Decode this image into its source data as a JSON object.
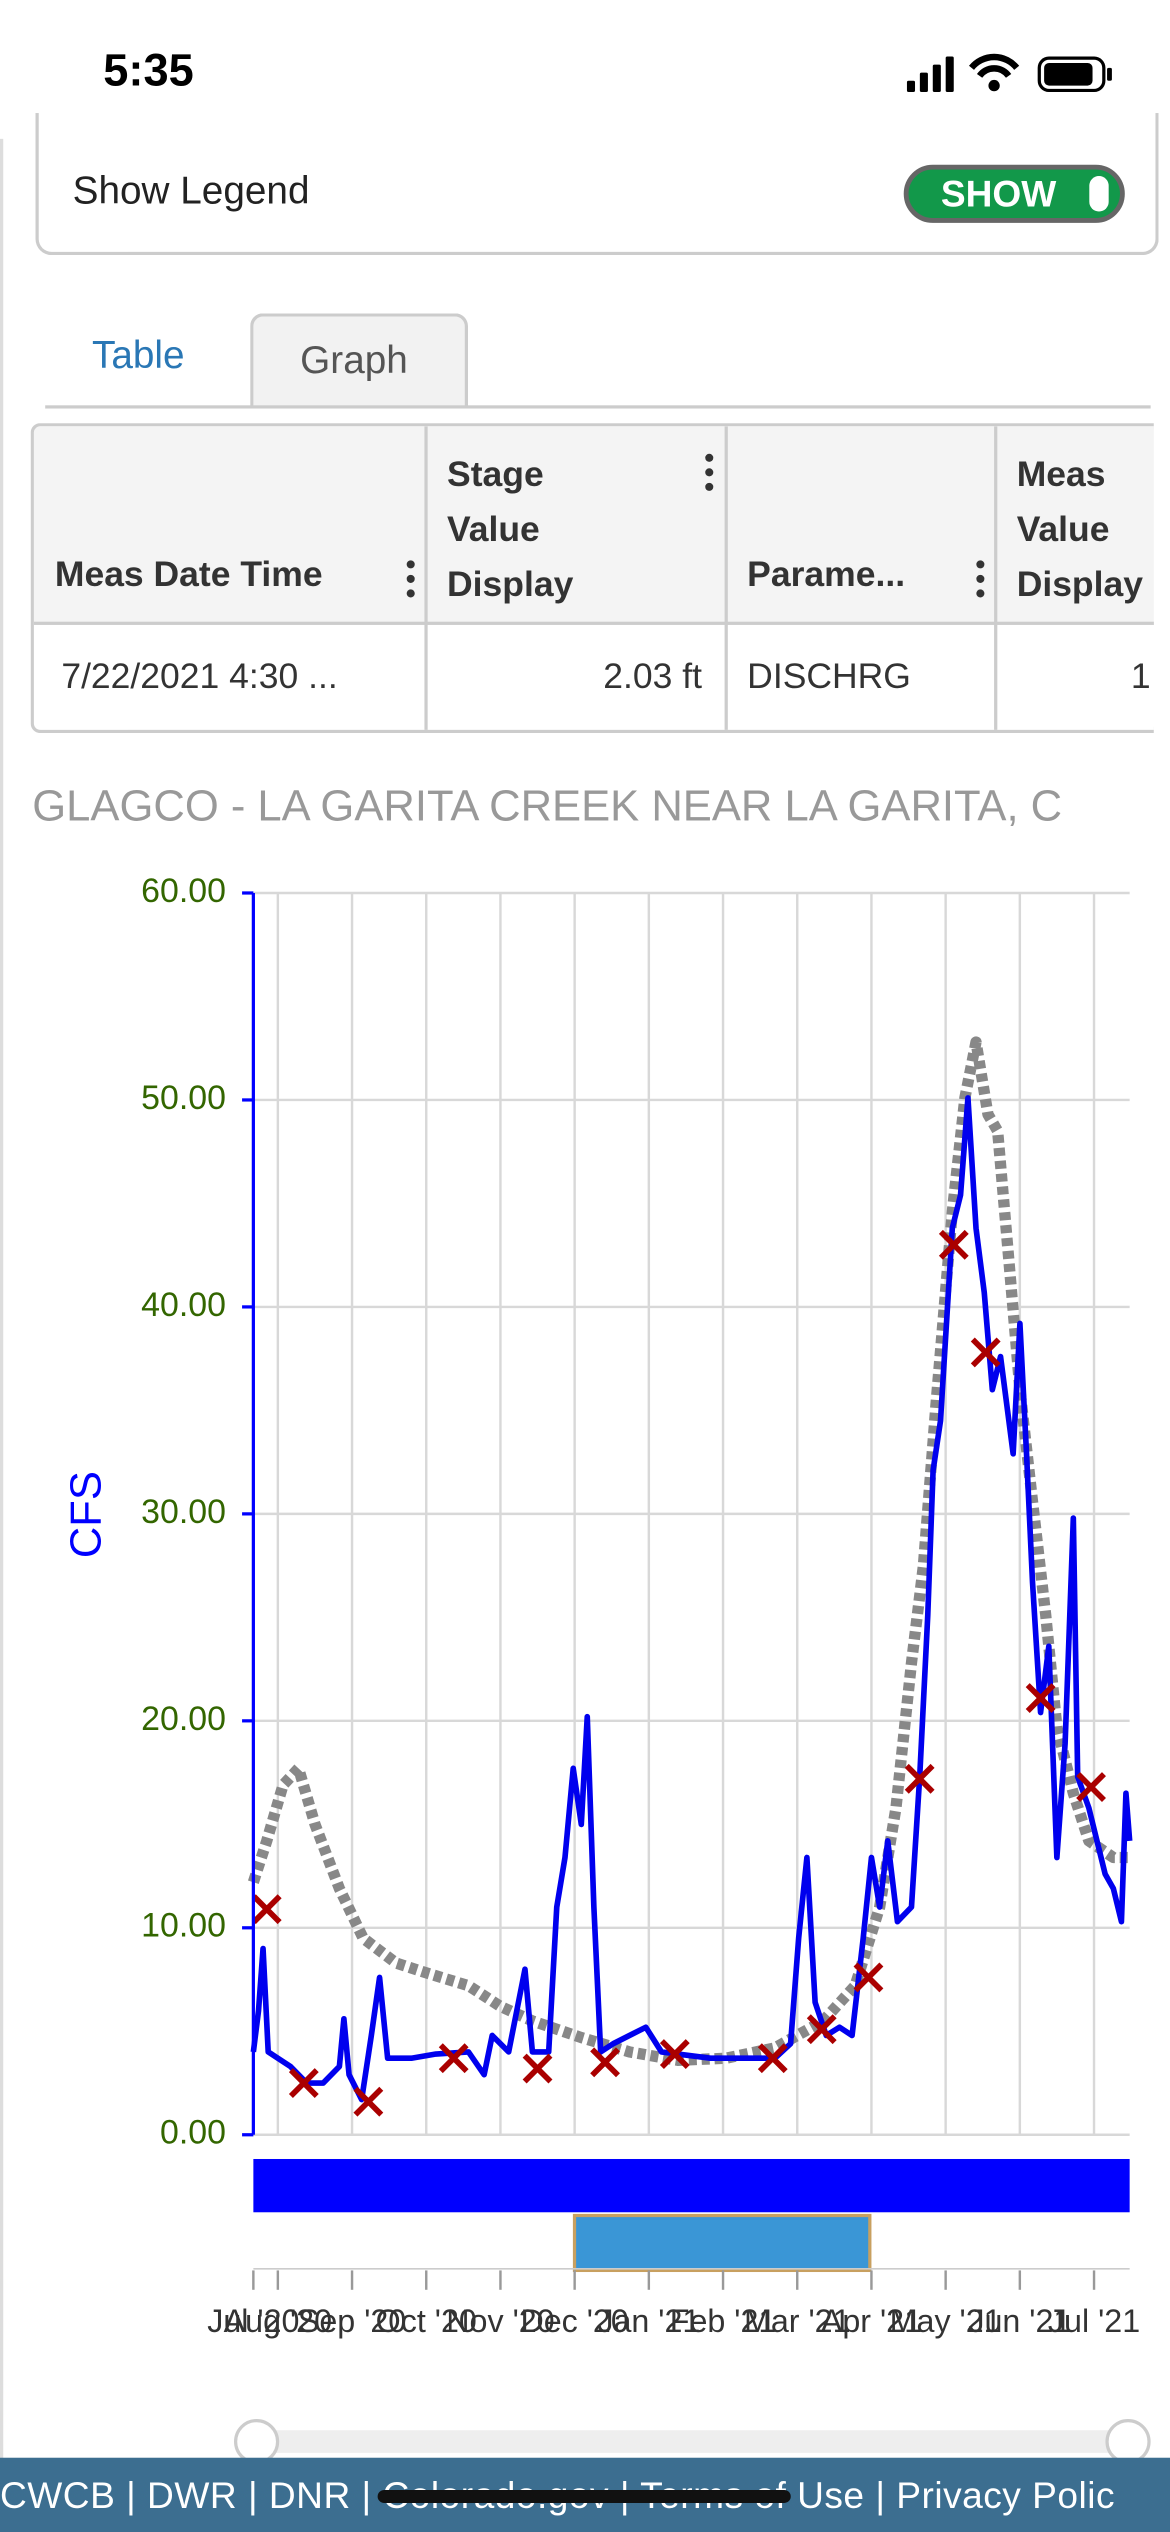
{
  "status_bar": {
    "time": "5:35"
  },
  "legend_toggle": {
    "label": "Show Legend",
    "state": "SHOW"
  },
  "tabs": [
    "Table",
    "Graph"
  ],
  "table": {
    "columns": [
      "Meas Date Time",
      "Stage Value Display",
      "Parame...",
      "Meas Value Display"
    ],
    "rows": [
      [
        "7/22/2021 4:30 ...",
        "2.03 ft",
        "DISCHRG",
        "1"
      ]
    ]
  },
  "chart_data": {
    "type": "line",
    "title": "GLAGCO - LA GARITA CREEK NEAR LA GARITA, C",
    "y_label": "CFS",
    "xlim": [
      0.67,
      12.48
    ],
    "xticks": [
      {
        "value": 0.67,
        "label": "Jul '20"
      },
      {
        "value": 1,
        "label": "Aug '20"
      },
      {
        "value": 2,
        "label": "Sep '20"
      },
      {
        "value": 3,
        "label": "Oct '20"
      },
      {
        "value": 4,
        "label": "Nov '20"
      },
      {
        "value": 5,
        "label": "Dec '20"
      },
      {
        "value": 6,
        "label": "Jan '21"
      },
      {
        "value": 7,
        "label": "Feb '21"
      },
      {
        "value": 8,
        "label": "Mar '21"
      },
      {
        "value": 9,
        "label": "Apr '21"
      },
      {
        "value": 10,
        "label": "May '21"
      },
      {
        "value": 11,
        "label": "Jun '21"
      },
      {
        "value": 12,
        "label": "Jul '21"
      }
    ],
    "ylim": [
      0,
      60
    ],
    "yticks": [
      {
        "value": 0,
        "label": "0.00"
      },
      {
        "value": 10,
        "label": "10.00"
      },
      {
        "value": 20,
        "label": "20.00"
      },
      {
        "value": 30,
        "label": "30.00"
      },
      {
        "value": 40,
        "label": "40.00"
      },
      {
        "value": 50,
        "label": "50.00"
      },
      {
        "value": 60,
        "label": "60.00"
      }
    ],
    "grid": true,
    "tick_color": "#336600",
    "series": [
      {
        "color": "#0000ee",
        "style": "line",
        "x": [
          0.67,
          0.74,
          0.8,
          0.87,
          1.0,
          1.17,
          1.39,
          1.61,
          1.83,
          1.89,
          1.96,
          2.13,
          2.26,
          2.37,
          2.48,
          2.8,
          3.13,
          3.57,
          3.78,
          3.89,
          4.11,
          4.33,
          4.43,
          4.65,
          4.76,
          4.87,
          4.98,
          5.09,
          5.17,
          5.26,
          5.35,
          5.52,
          5.74,
          5.96,
          6.17,
          6.39,
          6.83,
          7.26,
          7.7,
          7.91,
          8.02,
          8.13,
          8.24,
          8.39,
          8.57,
          8.74,
          8.89,
          9.0,
          9.11,
          9.22,
          9.35,
          9.54,
          9.65,
          9.76,
          9.83,
          9.93,
          10.09,
          10.2,
          10.3,
          10.41,
          10.52,
          10.63,
          10.74,
          10.91,
          11.0,
          11.09,
          11.17,
          11.28,
          11.39,
          11.5,
          11.61,
          11.72,
          11.78,
          11.93,
          12.15,
          12.26,
          12.37,
          12.43,
          12.48
        ],
        "values": [
          4.0,
          6.0,
          9.0,
          4.0,
          3.7,
          3.3,
          2.5,
          2.5,
          3.3,
          5.6,
          2.9,
          1.7,
          4.8,
          7.6,
          3.7,
          3.7,
          3.9,
          4.0,
          2.9,
          4.8,
          4.0,
          8.0,
          4.0,
          4.0,
          11.0,
          13.4,
          17.7,
          15.0,
          20.2,
          11.0,
          4.0,
          4.4,
          4.8,
          5.2,
          4.0,
          3.9,
          3.7,
          3.7,
          3.7,
          4.4,
          9.5,
          13.4,
          6.4,
          4.8,
          5.2,
          4.8,
          9.5,
          13.4,
          11.0,
          14.2,
          10.3,
          11.0,
          17.3,
          25.1,
          32.1,
          34.5,
          43.8,
          45.4,
          50.1,
          43.8,
          40.7,
          36.0,
          37.6,
          32.9,
          39.2,
          32.9,
          26.7,
          20.4,
          23.6,
          13.4,
          18.9,
          29.8,
          17.3,
          15.8,
          12.6,
          11.9,
          10.3,
          16.5,
          14.2
        ]
      },
      {
        "color": "#888888",
        "style": "dotted",
        "x": [
          0.67,
          0.85,
          1.07,
          1.28,
          1.5,
          1.83,
          2.15,
          2.59,
          3.02,
          3.57,
          4.0,
          4.43,
          5.09,
          5.74,
          6.39,
          7.04,
          7.7,
          8.35,
          8.78,
          9.11,
          9.33,
          9.54,
          9.7,
          9.87,
          10.09,
          10.26,
          10.41,
          10.57,
          10.7,
          10.85,
          11.0,
          11.17,
          11.35,
          11.5,
          11.72,
          11.93,
          12.26,
          12.48
        ],
        "values": [
          12.2,
          14.2,
          16.9,
          17.7,
          15.0,
          11.9,
          9.5,
          8.3,
          7.8,
          7.2,
          6.2,
          5.5,
          4.7,
          4.0,
          3.6,
          3.7,
          4.2,
          5.5,
          7.2,
          11.0,
          15.8,
          22.8,
          27.5,
          35.3,
          44.6,
          50.1,
          52.8,
          49.3,
          48.5,
          42.3,
          36.0,
          30.6,
          25.1,
          19.7,
          16.5,
          14.2,
          13.4,
          13.4
        ]
      },
      {
        "color": "#aa0000",
        "style": "x",
        "x": [
          0.85,
          1.35,
          2.22,
          3.37,
          4.5,
          5.41,
          6.35,
          7.67,
          8.33,
          8.96,
          9.65,
          10.11,
          10.54,
          11.28,
          11.96
        ],
        "values": [
          10.9,
          2.5,
          1.6,
          3.7,
          3.2,
          3.5,
          3.9,
          3.7,
          5.1,
          7.6,
          17.2,
          43.0,
          37.8,
          21.1,
          16.8
        ]
      }
    ]
  },
  "footer": "CWCB | DWR | DNR | Colorado.gov | Terms of Use | Privacy Polic"
}
